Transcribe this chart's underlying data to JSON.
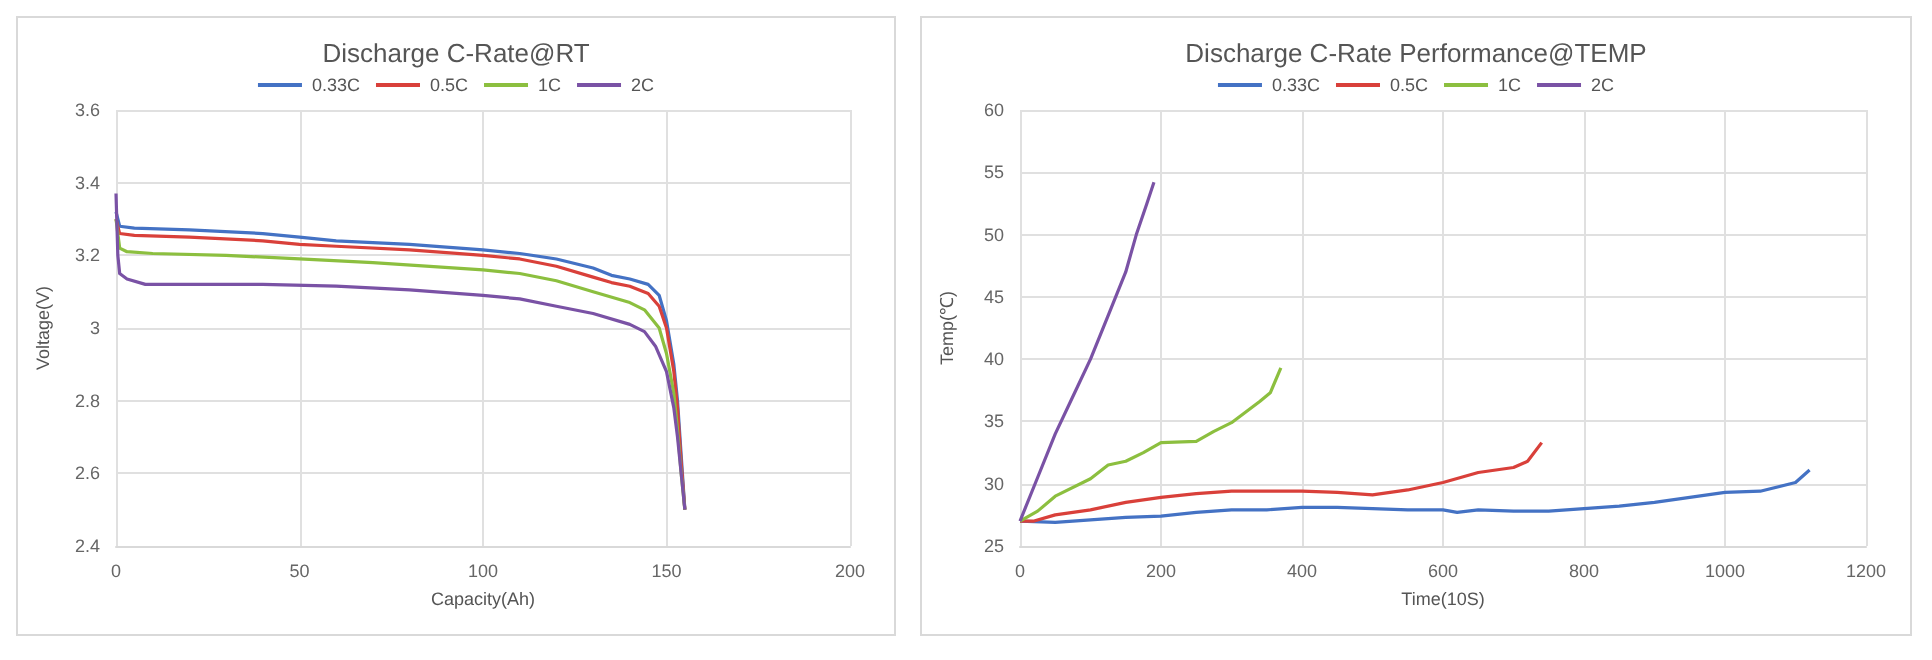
{
  "chart_data": [
    {
      "type": "line",
      "title": "Discharge C-Rate@RT",
      "xlabel": "Capacity(Ah)",
      "ylabel": "Voltage(V)",
      "xlim": [
        0,
        200
      ],
      "xticks": [
        0,
        50,
        100,
        150,
        200
      ],
      "ylim": [
        2.4,
        3.6
      ],
      "yticks": [
        2.4,
        2.6,
        2.8,
        3,
        3.2,
        3.4,
        3.6
      ],
      "grid": true,
      "legend": "top",
      "marker": "none",
      "line_style": "solid",
      "series": [
        {
          "name": "0.33C",
          "color": "#4472c4",
          "x": [
            0,
            1,
            5,
            20,
            40,
            50,
            60,
            80,
            100,
            110,
            120,
            130,
            135,
            140,
            145,
            148,
            150,
            152,
            153,
            154,
            155
          ],
          "values": [
            3.32,
            3.28,
            3.275,
            3.27,
            3.26,
            3.25,
            3.24,
            3.23,
            3.215,
            3.205,
            3.19,
            3.165,
            3.145,
            3.135,
            3.12,
            3.09,
            3.02,
            2.9,
            2.8,
            2.65,
            2.5
          ]
        },
        {
          "name": "0.5C",
          "color": "#d9403a",
          "x": [
            0,
            1,
            5,
            20,
            40,
            50,
            60,
            80,
            100,
            110,
            120,
            130,
            135,
            140,
            145,
            148,
            150,
            152,
            153,
            154,
            155
          ],
          "values": [
            3.3,
            3.26,
            3.255,
            3.25,
            3.24,
            3.23,
            3.225,
            3.215,
            3.2,
            3.19,
            3.17,
            3.14,
            3.125,
            3.115,
            3.095,
            3.06,
            3.0,
            2.88,
            2.78,
            2.63,
            2.5
          ]
        },
        {
          "name": "1C",
          "color": "#8cbf3f",
          "x": [
            0,
            1,
            3,
            10,
            30,
            50,
            70,
            100,
            110,
            120,
            130,
            140,
            144,
            148,
            150,
            152,
            153,
            154,
            155
          ],
          "values": [
            3.3,
            3.22,
            3.21,
            3.205,
            3.2,
            3.19,
            3.18,
            3.16,
            3.15,
            3.13,
            3.1,
            3.07,
            3.05,
            3.0,
            2.93,
            2.82,
            2.72,
            2.6,
            2.5
          ]
        },
        {
          "name": "2C",
          "color": "#7a52a5",
          "x": [
            0,
            0.5,
            1,
            3,
            8,
            20,
            40,
            60,
            80,
            100,
            110,
            120,
            130,
            140,
            144,
            147,
            150,
            152,
            153,
            154,
            155
          ],
          "values": [
            3.37,
            3.2,
            3.15,
            3.135,
            3.12,
            3.12,
            3.12,
            3.115,
            3.105,
            3.09,
            3.08,
            3.06,
            3.04,
            3.01,
            2.99,
            2.95,
            2.88,
            2.78,
            2.7,
            2.6,
            2.5
          ]
        }
      ]
    },
    {
      "type": "line",
      "title": "Discharge C-Rate Performance@TEMP",
      "xlabel": "Time(10S)",
      "ylabel": "Temp(℃)",
      "xlim": [
        0,
        1200
      ],
      "xticks": [
        0,
        200,
        400,
        600,
        800,
        1000,
        1200
      ],
      "ylim": [
        25,
        60
      ],
      "yticks": [
        25,
        30,
        35,
        40,
        45,
        50,
        55,
        60
      ],
      "grid": true,
      "legend": "top",
      "marker": "none",
      "line_style": "solid",
      "series": [
        {
          "name": "0.33C",
          "color": "#4472c4",
          "x": [
            0,
            50,
            100,
            150,
            200,
            250,
            300,
            350,
            400,
            450,
            500,
            550,
            600,
            620,
            650,
            700,
            750,
            800,
            850,
            900,
            950,
            1000,
            1050,
            1100,
            1120
          ],
          "values": [
            27,
            26.9,
            27.1,
            27.3,
            27.4,
            27.7,
            27.9,
            27.9,
            28.1,
            28.1,
            28.0,
            27.9,
            27.9,
            27.7,
            27.9,
            27.8,
            27.8,
            28,
            28.2,
            28.5,
            28.9,
            29.3,
            29.4,
            30.1,
            31.1
          ]
        },
        {
          "name": "0.5C",
          "color": "#d9403a",
          "x": [
            0,
            20,
            50,
            100,
            150,
            200,
            250,
            300,
            350,
            400,
            450,
            500,
            550,
            600,
            650,
            700,
            720,
            740
          ],
          "values": [
            27,
            27,
            27.5,
            27.9,
            28.5,
            28.9,
            29.2,
            29.4,
            29.4,
            29.4,
            29.3,
            29.1,
            29.5,
            30.1,
            30.9,
            31.3,
            31.8,
            33.3
          ]
        },
        {
          "name": "1C",
          "color": "#8cbf3f",
          "x": [
            0,
            25,
            50,
            100,
            125,
            150,
            175,
            200,
            250,
            275,
            300,
            340,
            355,
            370
          ],
          "values": [
            27,
            27.8,
            29,
            30.4,
            31.5,
            31.8,
            32.5,
            33.3,
            33.4,
            34.2,
            34.9,
            36.6,
            37.3,
            39.3
          ]
        },
        {
          "name": "2C",
          "color": "#7a52a5",
          "x": [
            0,
            25,
            50,
            75,
            100,
            125,
            150,
            165,
            180,
            190
          ],
          "values": [
            27,
            30.5,
            34,
            37,
            40,
            43.5,
            47,
            50,
            52.5,
            54.2
          ]
        }
      ]
    }
  ]
}
